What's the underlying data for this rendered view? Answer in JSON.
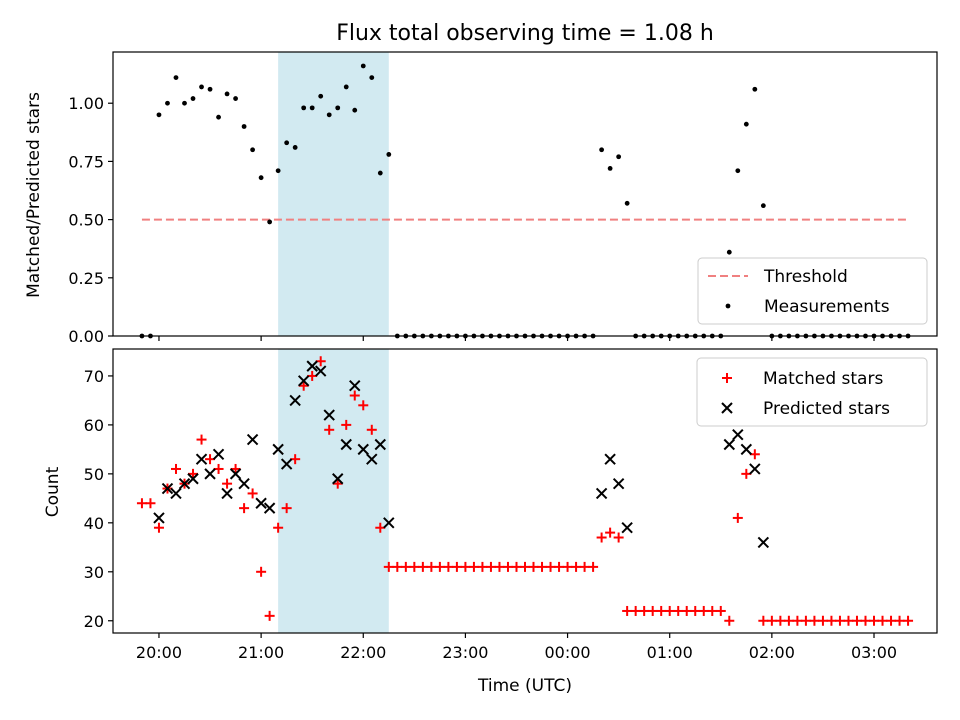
{
  "title": "Flux total observing time = 1.08 h",
  "chart_data": [
    {
      "type": "scatter",
      "ylabel": "Matched/Predicted stars",
      "xlabel": "",
      "ylim": [
        0,
        1.22
      ],
      "yticks": [
        "0.00",
        "0.25",
        "0.50",
        "0.75",
        "1.00"
      ],
      "shaded_interval": [
        "21:10",
        "22:15"
      ],
      "legend_location": "lower right",
      "legend": [
        "Threshold",
        "Measurements"
      ],
      "threshold": {
        "name": "Threshold",
        "value": 0.5,
        "x_range": [
          "19:50",
          "03:20"
        ],
        "color": "#f08080"
      },
      "series": [
        {
          "name": "Measurements",
          "color": "#000000",
          "points": [
            [
              "19:50",
              0.0
            ],
            [
              "19:55",
              0.0
            ],
            [
              "20:00",
              0.95
            ],
            [
              "20:05",
              1.0
            ],
            [
              "20:10",
              1.11
            ],
            [
              "20:15",
              1.0
            ],
            [
              "20:20",
              1.02
            ],
            [
              "20:25",
              1.07
            ],
            [
              "20:30",
              1.06
            ],
            [
              "20:35",
              0.94
            ],
            [
              "20:40",
              1.04
            ],
            [
              "20:45",
              1.02
            ],
            [
              "20:50",
              0.9
            ],
            [
              "20:55",
              0.8
            ],
            [
              "21:00",
              0.68
            ],
            [
              "21:05",
              0.49
            ],
            [
              "21:10",
              0.71
            ],
            [
              "21:15",
              0.83
            ],
            [
              "21:20",
              0.81
            ],
            [
              "21:25",
              0.98
            ],
            [
              "21:30",
              0.98
            ],
            [
              "21:35",
              1.03
            ],
            [
              "21:40",
              0.95
            ],
            [
              "21:45",
              0.98
            ],
            [
              "21:50",
              1.07
            ],
            [
              "21:55",
              0.97
            ],
            [
              "22:00",
              1.16
            ],
            [
              "22:05",
              1.11
            ],
            [
              "22:10",
              0.7
            ],
            [
              "22:15",
              0.78
            ],
            [
              "22:20",
              0.0
            ],
            [
              "22:25",
              0.0
            ],
            [
              "22:30",
              0.0
            ],
            [
              "22:35",
              0.0
            ],
            [
              "22:40",
              0.0
            ],
            [
              "22:45",
              0.0
            ],
            [
              "22:50",
              0.0
            ],
            [
              "22:55",
              0.0
            ],
            [
              "23:00",
              0.0
            ],
            [
              "23:05",
              0.0
            ],
            [
              "23:10",
              0.0
            ],
            [
              "23:15",
              0.0
            ],
            [
              "23:20",
              0.0
            ],
            [
              "23:25",
              0.0
            ],
            [
              "23:30",
              0.0
            ],
            [
              "23:35",
              0.0
            ],
            [
              "23:40",
              0.0
            ],
            [
              "23:45",
              0.0
            ],
            [
              "23:50",
              0.0
            ],
            [
              "23:55",
              0.0
            ],
            [
              "00:00",
              0.0
            ],
            [
              "00:05",
              0.0
            ],
            [
              "00:10",
              0.0
            ],
            [
              "00:15",
              0.0
            ],
            [
              "00:20",
              0.8
            ],
            [
              "00:25",
              0.72
            ],
            [
              "00:30",
              0.77
            ],
            [
              "00:35",
              0.57
            ],
            [
              "00:40",
              0.0
            ],
            [
              "00:45",
              0.0
            ],
            [
              "00:50",
              0.0
            ],
            [
              "00:55",
              0.0
            ],
            [
              "01:00",
              0.0
            ],
            [
              "01:05",
              0.0
            ],
            [
              "01:10",
              0.0
            ],
            [
              "01:15",
              0.0
            ],
            [
              "01:20",
              0.0
            ],
            [
              "01:25",
              0.0
            ],
            [
              "01:30",
              0.0
            ],
            [
              "01:35",
              0.36
            ],
            [
              "01:40",
              0.71
            ],
            [
              "01:45",
              0.91
            ],
            [
              "01:50",
              1.06
            ],
            [
              "01:55",
              0.56
            ],
            [
              "02:00",
              0.0
            ],
            [
              "02:05",
              0.0
            ],
            [
              "02:10",
              0.0
            ],
            [
              "02:15",
              0.0
            ],
            [
              "02:20",
              0.0
            ],
            [
              "02:25",
              0.0
            ],
            [
              "02:30",
              0.0
            ],
            [
              "02:35",
              0.0
            ],
            [
              "02:40",
              0.0
            ],
            [
              "02:45",
              0.0
            ],
            [
              "02:50",
              0.0
            ],
            [
              "02:55",
              0.0
            ],
            [
              "03:00",
              0.0
            ],
            [
              "03:05",
              0.0
            ],
            [
              "03:10",
              0.0
            ],
            [
              "03:15",
              0.0
            ],
            [
              "03:20",
              0.0
            ]
          ]
        }
      ]
    },
    {
      "type": "scatter",
      "ylabel": "Count",
      "xlabel": "Time (UTC)",
      "ylim": [
        17.5,
        75.5
      ],
      "yticks": [
        "20",
        "30",
        "40",
        "50",
        "60",
        "70"
      ],
      "xticks": [
        "20:00",
        "21:00",
        "22:00",
        "23:00",
        "00:00",
        "01:00",
        "02:00",
        "03:00"
      ],
      "shaded_interval": [
        "21:10",
        "22:15"
      ],
      "legend_location": "upper right",
      "legend": [
        "Matched stars",
        "Predicted stars"
      ],
      "series": [
        {
          "name": "Matched stars",
          "marker": "+",
          "color": "#ff0000",
          "points": [
            [
              "19:50",
              44
            ],
            [
              "19:55",
              44
            ],
            [
              "20:00",
              39
            ],
            [
              "20:05",
              47
            ],
            [
              "20:10",
              51
            ],
            [
              "20:15",
              48
            ],
            [
              "20:20",
              50
            ],
            [
              "20:25",
              57
            ],
            [
              "20:30",
              53
            ],
            [
              "20:35",
              51
            ],
            [
              "20:40",
              48
            ],
            [
              "20:45",
              51
            ],
            [
              "20:50",
              43
            ],
            [
              "20:55",
              46
            ],
            [
              "21:00",
              30
            ],
            [
              "21:05",
              21
            ],
            [
              "21:10",
              39
            ],
            [
              "21:15",
              43
            ],
            [
              "21:20",
              53
            ],
            [
              "21:25",
              68
            ],
            [
              "21:30",
              70
            ],
            [
              "21:35",
              73
            ],
            [
              "21:40",
              59
            ],
            [
              "21:45",
              48
            ],
            [
              "21:50",
              60
            ],
            [
              "21:55",
              66
            ],
            [
              "22:00",
              64
            ],
            [
              "22:05",
              59
            ],
            [
              "22:10",
              39
            ],
            [
              "22:15",
              31
            ],
            [
              "22:20",
              31
            ],
            [
              "22:25",
              31
            ],
            [
              "22:30",
              31
            ],
            [
              "22:35",
              31
            ],
            [
              "22:40",
              31
            ],
            [
              "22:45",
              31
            ],
            [
              "22:50",
              31
            ],
            [
              "22:55",
              31
            ],
            [
              "23:00",
              31
            ],
            [
              "23:05",
              31
            ],
            [
              "23:10",
              31
            ],
            [
              "23:15",
              31
            ],
            [
              "23:20",
              31
            ],
            [
              "23:25",
              31
            ],
            [
              "23:30",
              31
            ],
            [
              "23:35",
              31
            ],
            [
              "23:40",
              31
            ],
            [
              "23:45",
              31
            ],
            [
              "23:50",
              31
            ],
            [
              "23:55",
              31
            ],
            [
              "00:00",
              31
            ],
            [
              "00:05",
              31
            ],
            [
              "00:10",
              31
            ],
            [
              "00:15",
              31
            ],
            [
              "00:20",
              37
            ],
            [
              "00:25",
              38
            ],
            [
              "00:30",
              37
            ],
            [
              "00:35",
              22
            ],
            [
              "00:40",
              22
            ],
            [
              "00:45",
              22
            ],
            [
              "00:50",
              22
            ],
            [
              "00:55",
              22
            ],
            [
              "01:00",
              22
            ],
            [
              "01:05",
              22
            ],
            [
              "01:10",
              22
            ],
            [
              "01:15",
              22
            ],
            [
              "01:20",
              22
            ],
            [
              "01:25",
              22
            ],
            [
              "01:30",
              22
            ],
            [
              "01:35",
              20
            ],
            [
              "01:40",
              41
            ],
            [
              "01:45",
              50
            ],
            [
              "01:50",
              54
            ],
            [
              "01:55",
              20
            ],
            [
              "02:00",
              20
            ],
            [
              "02:05",
              20
            ],
            [
              "02:10",
              20
            ],
            [
              "02:15",
              20
            ],
            [
              "02:20",
              20
            ],
            [
              "02:25",
              20
            ],
            [
              "02:30",
              20
            ],
            [
              "02:35",
              20
            ],
            [
              "02:40",
              20
            ],
            [
              "02:45",
              20
            ],
            [
              "02:50",
              20
            ],
            [
              "02:55",
              20
            ],
            [
              "03:00",
              20
            ],
            [
              "03:05",
              20
            ],
            [
              "03:10",
              20
            ],
            [
              "03:15",
              20
            ],
            [
              "03:20",
              20
            ]
          ]
        },
        {
          "name": "Predicted stars",
          "marker": "x",
          "color": "#000000",
          "points": [
            [
              "20:00",
              41
            ],
            [
              "20:05",
              47
            ],
            [
              "20:10",
              46
            ],
            [
              "20:15",
              48
            ],
            [
              "20:20",
              49
            ],
            [
              "20:25",
              53
            ],
            [
              "20:30",
              50
            ],
            [
              "20:35",
              54
            ],
            [
              "20:40",
              46
            ],
            [
              "20:45",
              50
            ],
            [
              "20:50",
              48
            ],
            [
              "20:55",
              57
            ],
            [
              "21:00",
              44
            ],
            [
              "21:05",
              43
            ],
            [
              "21:10",
              55
            ],
            [
              "21:15",
              52
            ],
            [
              "21:20",
              65
            ],
            [
              "21:25",
              69
            ],
            [
              "21:30",
              72
            ],
            [
              "21:35",
              71
            ],
            [
              "21:40",
              62
            ],
            [
              "21:45",
              49
            ],
            [
              "21:50",
              56
            ],
            [
              "21:55",
              68
            ],
            [
              "22:00",
              55
            ],
            [
              "22:05",
              53
            ],
            [
              "22:10",
              56
            ],
            [
              "22:15",
              40
            ],
            [
              "00:20",
              46
            ],
            [
              "00:25",
              53
            ],
            [
              "00:30",
              48
            ],
            [
              "00:35",
              39
            ],
            [
              "01:35",
              56
            ],
            [
              "01:40",
              58
            ],
            [
              "01:45",
              55
            ],
            [
              "01:50",
              51
            ],
            [
              "01:55",
              36
            ]
          ]
        }
      ]
    }
  ]
}
